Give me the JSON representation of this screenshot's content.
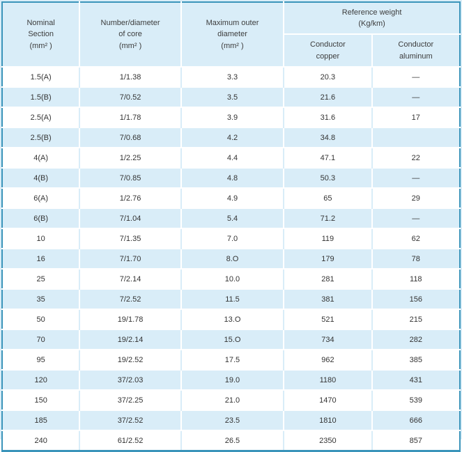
{
  "header": {
    "nominal_section": "Nominal\nSection\n(mm² )",
    "core": "Number/diameter\nof core\n(mm² )",
    "outer_diameter": "Maximum outer\ndiameter\n(mm² )",
    "reference_weight": "Reference weight\n(Kg/km)",
    "conductor_copper": "Conductor\ncopper",
    "conductor_aluminum": "Conductor\naluminum"
  },
  "colors": {
    "row_highlight": "#d9edf8",
    "row_white": "#ffffff",
    "table_border": "#3a94ba",
    "text": "#333333"
  },
  "chart_data": {
    "type": "table",
    "title": "",
    "columns": [
      "Nominal Section (mm²)",
      "Number/diameter of core (mm²)",
      "Maximum outer diameter (mm²)",
      "Reference weight (Kg/km) - Conductor copper",
      "Reference weight (Kg/km) - Conductor aluminum"
    ],
    "rows": [
      [
        "1.5(A)",
        "1/1.38",
        "3.3",
        "20.3",
        "—"
      ],
      [
        "1.5(B)",
        "7/0.52",
        "3.5",
        "21.6",
        "—"
      ],
      [
        "2.5(A)",
        "1/1.78",
        "3.9",
        "31.6",
        "17"
      ],
      [
        "2.5(B)",
        "7/0.68",
        "4.2",
        "34.8",
        ""
      ],
      [
        "4(A)",
        "1/2.25",
        "4.4",
        "47.1",
        "22"
      ],
      [
        "4(B)",
        "7/0.85",
        "4.8",
        "50.3",
        "—"
      ],
      [
        "6(A)",
        "1/2.76",
        "4.9",
        "65",
        "29"
      ],
      [
        "6(B)",
        "7/1.04",
        "5.4",
        "71.2",
        "—"
      ],
      [
        "10",
        "7/1.35",
        "7.0",
        "119",
        "62"
      ],
      [
        "16",
        "7/1.70",
        "8.O",
        "179",
        "78"
      ],
      [
        "25",
        "7/2.14",
        "10.0",
        "281",
        "118"
      ],
      [
        "35",
        "7/2.52",
        "11.5",
        "381",
        "156"
      ],
      [
        "50",
        "19/1.78",
        "13.O",
        "521",
        "215"
      ],
      [
        "70",
        "19/2.14",
        "15.O",
        "734",
        "282"
      ],
      [
        "95",
        "19/2.52",
        "17.5",
        "962",
        "385"
      ],
      [
        "120",
        "37/2.03",
        "19.0",
        "1180",
        "431"
      ],
      [
        "150",
        "37/2.25",
        "21.0",
        "1470",
        "539"
      ],
      [
        "185",
        "37/2.52",
        "23.5",
        "1810",
        "666"
      ],
      [
        "240",
        "61/2.52",
        "26.5",
        "2350",
        "857"
      ]
    ]
  }
}
